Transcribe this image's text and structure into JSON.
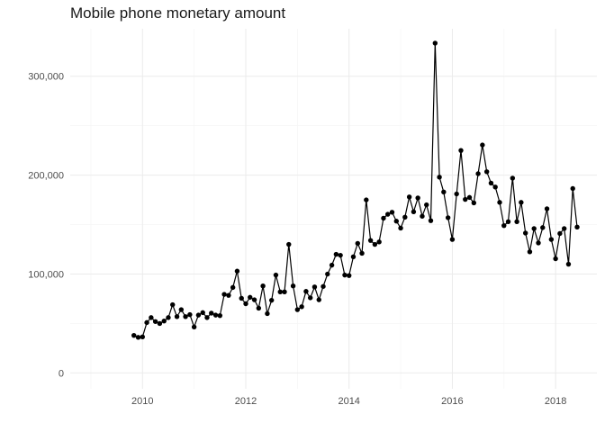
{
  "chart_data": {
    "type": "line",
    "title": "Mobile phone monetary amount",
    "xlabel": "",
    "ylabel": "",
    "x_axis": {
      "type": "time",
      "range": [
        2008.6,
        2018.8
      ],
      "major_ticks": [
        2010,
        2012,
        2014,
        2016,
        2018
      ],
      "minor_ticks": [
        2009,
        2011,
        2013,
        2015,
        2017
      ],
      "tick_labels": [
        "2010",
        "2012",
        "2014",
        "2016",
        "2018"
      ]
    },
    "y_axis": {
      "range": [
        -16000,
        348000
      ],
      "major_ticks": [
        0,
        100000,
        200000,
        300000
      ],
      "minor_ticks": [
        50000,
        150000,
        250000
      ],
      "tick_labels": [
        "0",
        "100,000",
        "200,000",
        "300,000"
      ]
    },
    "grid": true,
    "legend": "none",
    "series": [
      {
        "x": [
          2009.833,
          2009.917,
          2010.0,
          2010.083,
          2010.167,
          2010.25,
          2010.333,
          2010.417,
          2010.5,
          2010.583,
          2010.667,
          2010.75,
          2010.833,
          2010.917,
          2011.0,
          2011.083,
          2011.167,
          2011.25,
          2011.333,
          2011.417,
          2011.5,
          2011.583,
          2011.667,
          2011.75,
          2011.833,
          2011.917,
          2012.0,
          2012.083,
          2012.167,
          2012.25,
          2012.333,
          2012.417,
          2012.5,
          2012.583,
          2012.667,
          2012.75,
          2012.833,
          2012.917,
          2013.0,
          2013.083,
          2013.167,
          2013.25,
          2013.333,
          2013.417,
          2013.5,
          2013.583,
          2013.667,
          2013.75,
          2013.833,
          2013.917,
          2014.0,
          2014.083,
          2014.167,
          2014.25,
          2014.333,
          2014.417,
          2014.5,
          2014.583,
          2014.667,
          2014.75,
          2014.833,
          2014.917,
          2015.0,
          2015.083,
          2015.167,
          2015.25,
          2015.333,
          2015.417,
          2015.5,
          2015.583,
          2015.667,
          2015.75,
          2015.833,
          2015.917,
          2016.0,
          2016.083,
          2016.167,
          2016.25,
          2016.333,
          2016.417,
          2016.5,
          2016.583,
          2016.667,
          2016.75,
          2016.833,
          2016.917,
          2017.0,
          2017.083,
          2017.167,
          2017.25,
          2017.333,
          2017.417,
          2017.5,
          2017.583,
          2017.667,
          2017.75,
          2017.833,
          2017.917,
          2018.0,
          2018.083,
          2018.167,
          2018.25,
          2018.333,
          2018.417
        ],
        "y": [
          38000,
          36000,
          36500,
          51000,
          56000,
          52000,
          50000,
          52500,
          56000,
          69000,
          57000,
          64000,
          57000,
          59000,
          46500,
          58500,
          61000,
          56000,
          60500,
          58500,
          58000,
          79500,
          78500,
          86500,
          103000,
          75500,
          70000,
          76500,
          74000,
          65500,
          88000,
          60000,
          73500,
          99000,
          82000,
          82000,
          130000,
          88000,
          64000,
          67000,
          82500,
          76000,
          87000,
          74000,
          87500,
          100000,
          109000,
          120000,
          119000,
          99000,
          98500,
          117500,
          131000,
          121000,
          175000,
          134000,
          130000,
          132500,
          156500,
          160500,
          162500,
          153500,
          146500,
          157500,
          178000,
          163000,
          177000,
          158500,
          170000,
          154000,
          333500,
          198000,
          183000,
          157000,
          135000,
          181000,
          225000,
          175500,
          177500,
          172000,
          201500,
          230500,
          203500,
          192000,
          188000,
          172500,
          149000,
          153000,
          197000,
          153000,
          172500,
          141500,
          122500,
          146000,
          131500,
          147000,
          166000,
          135000,
          115500,
          141000,
          146000,
          110000,
          186500,
          147500
        ]
      }
    ]
  }
}
